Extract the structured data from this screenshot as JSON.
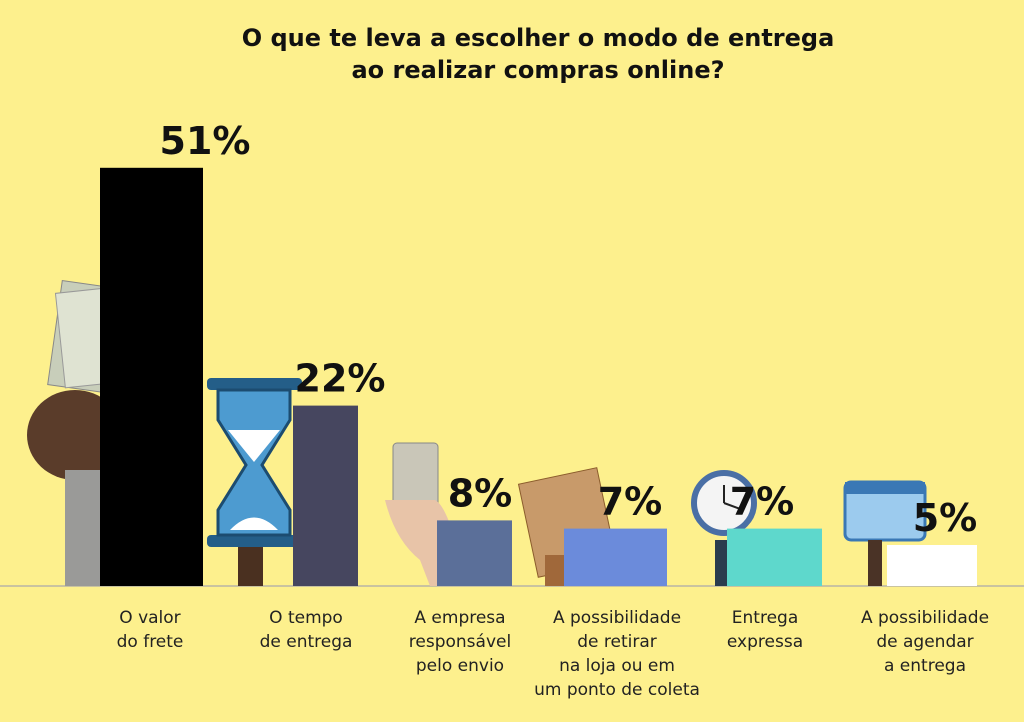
{
  "chart_data": {
    "type": "bar",
    "title": "O que te leva a escolher o modo de entrega\nao realizar compras online?",
    "categories": [
      "O valor\ndo frete",
      "O tempo\nde entrega",
      "A empresa\nresponsável\npelo envio",
      "A possibilidade\nde retirar\nna loja ou em\num ponto de coleta",
      "Entrega\nexpressa",
      "A possibilidade\nde agendar\na entrega"
    ],
    "values": [
      51,
      22,
      8,
      7,
      7,
      5
    ],
    "value_labels": [
      "51%",
      "22%",
      "8%",
      "7%",
      "7%",
      "5%"
    ],
    "colors": [
      "#000000",
      "#46465f",
      "#5b6f99",
      "#6b8bdb",
      "#5ed8cc",
      "#ffffff"
    ]
  }
}
